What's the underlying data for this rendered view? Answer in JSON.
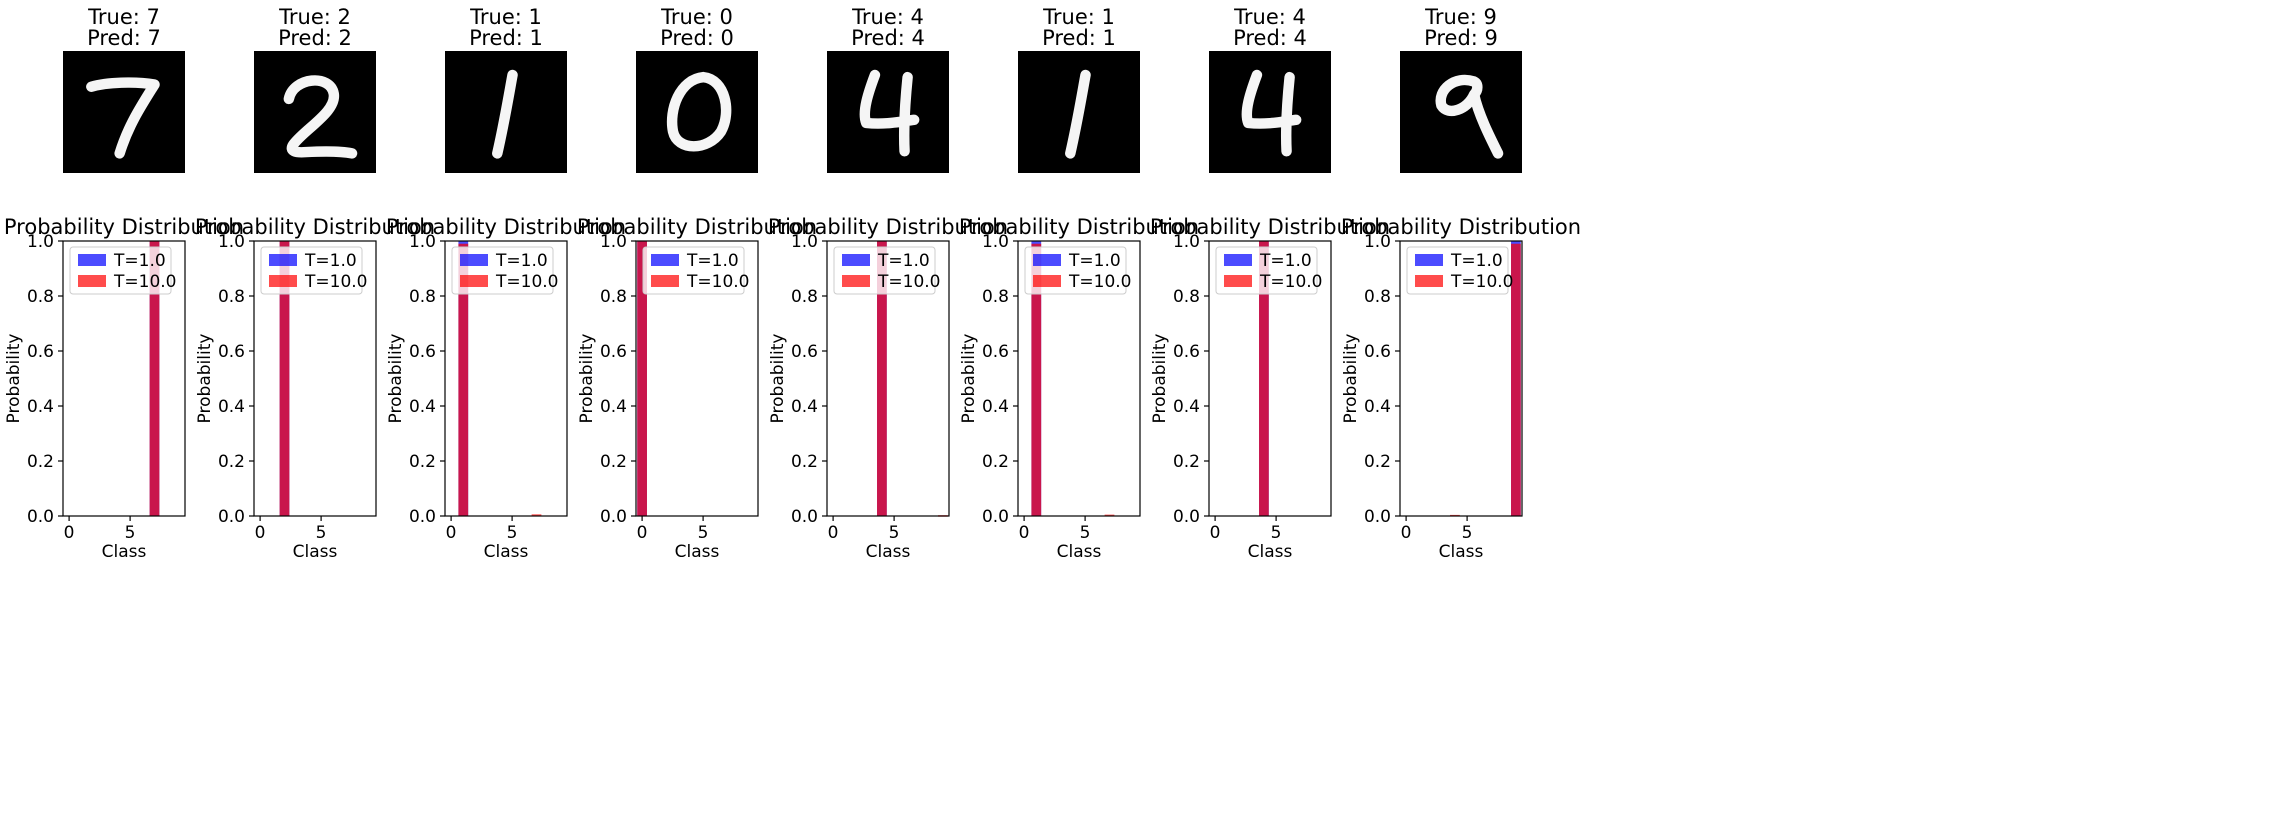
{
  "chart_data": [
    {
      "type": "image",
      "title_true": "True: 7",
      "title_pred": "Pred: 7",
      "digit": "7"
    },
    {
      "type": "image",
      "title_true": "True: 2",
      "title_pred": "Pred: 2",
      "digit": "2"
    },
    {
      "type": "image",
      "title_true": "True: 1",
      "title_pred": "Pred: 1",
      "digit": "1"
    },
    {
      "type": "image",
      "title_true": "True: 0",
      "title_pred": "Pred: 0",
      "digit": "0"
    },
    {
      "type": "image",
      "title_true": "True: 4",
      "title_pred": "Pred: 4",
      "digit": "4"
    },
    {
      "type": "image",
      "title_true": "True: 1",
      "title_pred": "Pred: 1",
      "digit": "1"
    },
    {
      "type": "image",
      "title_true": "True: 4",
      "title_pred": "Pred: 4",
      "digit": "4"
    },
    {
      "type": "image",
      "title_true": "True: 9",
      "title_pred": "Pred: 9",
      "digit": "9"
    },
    {
      "type": "bar",
      "title": "Probability Distribution",
      "xlabel": "Class",
      "ylabel": "Probability",
      "xlim": [
        -0.5,
        9.5
      ],
      "ylim": [
        0,
        1
      ],
      "xticks": [
        0,
        5
      ],
      "yticks": [
        0,
        0.2,
        0.4,
        0.6,
        0.8,
        1.0
      ],
      "categories": [
        0,
        1,
        2,
        3,
        4,
        5,
        6,
        7,
        8,
        9
      ],
      "legend_loc": "upper left",
      "series": [
        {
          "name": "T=1.0",
          "color": "#0000ff",
          "values": [
            0,
            0,
            0,
            0,
            0,
            0,
            0,
            1.0,
            0,
            0
          ]
        },
        {
          "name": "T=10.0",
          "color": "#ff0000",
          "values": [
            0,
            0,
            0,
            0,
            0,
            0,
            0,
            1.0,
            0,
            0
          ]
        }
      ]
    },
    {
      "type": "bar",
      "title": "Probability Distribution",
      "xlabel": "Class",
      "ylabel": "Probability",
      "xlim": [
        -0.5,
        9.5
      ],
      "ylim": [
        0,
        1
      ],
      "xticks": [
        0,
        5
      ],
      "yticks": [
        0,
        0.2,
        0.4,
        0.6,
        0.8,
        1.0
      ],
      "categories": [
        0,
        1,
        2,
        3,
        4,
        5,
        6,
        7,
        8,
        9
      ],
      "legend_loc": "upper left",
      "series": [
        {
          "name": "T=1.0",
          "color": "#0000ff",
          "values": [
            0,
            0,
            1.0,
            0,
            0,
            0,
            0,
            0,
            0,
            0
          ]
        },
        {
          "name": "T=10.0",
          "color": "#ff0000",
          "values": [
            0,
            0,
            1.0,
            0,
            0,
            0,
            0,
            0,
            0,
            0
          ]
        }
      ]
    },
    {
      "type": "bar",
      "title": "Probability Distribution",
      "xlabel": "Class",
      "ylabel": "Probability",
      "xlim": [
        -0.5,
        9.5
      ],
      "ylim": [
        0,
        1
      ],
      "xticks": [
        0,
        5
      ],
      "yticks": [
        0,
        0.2,
        0.4,
        0.6,
        0.8,
        1.0
      ],
      "categories": [
        0,
        1,
        2,
        3,
        4,
        5,
        6,
        7,
        8,
        9
      ],
      "legend_loc": "upper left",
      "series": [
        {
          "name": "T=1.0",
          "color": "#0000ff",
          "values": [
            0,
            1.0,
            0,
            0,
            0,
            0,
            0,
            0,
            0,
            0
          ]
        },
        {
          "name": "T=10.0",
          "color": "#ff0000",
          "values": [
            0,
            0.99,
            0,
            0,
            0,
            0,
            0,
            0.006,
            0,
            0
          ]
        }
      ]
    },
    {
      "type": "bar",
      "title": "Probability Distribution",
      "xlabel": "Class",
      "ylabel": "Probability",
      "xlim": [
        -0.5,
        9.5
      ],
      "ylim": [
        0,
        1
      ],
      "xticks": [
        0,
        5
      ],
      "yticks": [
        0,
        0.2,
        0.4,
        0.6,
        0.8,
        1.0
      ],
      "categories": [
        0,
        1,
        2,
        3,
        4,
        5,
        6,
        7,
        8,
        9
      ],
      "legend_loc": "upper left",
      "series": [
        {
          "name": "T=1.0",
          "color": "#0000ff",
          "values": [
            1.0,
            0,
            0,
            0,
            0,
            0,
            0,
            0,
            0,
            0
          ]
        },
        {
          "name": "T=10.0",
          "color": "#ff0000",
          "values": [
            1.0,
            0,
            0,
            0,
            0,
            0,
            0,
            0,
            0,
            0
          ]
        }
      ]
    },
    {
      "type": "bar",
      "title": "Probability Distribution",
      "xlabel": "Class",
      "ylabel": "Probability",
      "xlim": [
        -0.5,
        9.5
      ],
      "ylim": [
        0,
        1
      ],
      "xticks": [
        0,
        5
      ],
      "yticks": [
        0,
        0.2,
        0.4,
        0.6,
        0.8,
        1.0
      ],
      "categories": [
        0,
        1,
        2,
        3,
        4,
        5,
        6,
        7,
        8,
        9
      ],
      "legend_loc": "upper left",
      "series": [
        {
          "name": "T=1.0",
          "color": "#0000ff",
          "values": [
            0,
            0,
            0,
            0,
            1.0,
            0,
            0,
            0,
            0,
            0
          ]
        },
        {
          "name": "T=10.0",
          "color": "#ff0000",
          "values": [
            0,
            0,
            0,
            0,
            1.0,
            0,
            0,
            0,
            0,
            0.003
          ]
        }
      ]
    },
    {
      "type": "bar",
      "title": "Probability Distribution",
      "xlabel": "Class",
      "ylabel": "Probability",
      "xlim": [
        -0.5,
        9.5
      ],
      "ylim": [
        0,
        1
      ],
      "xticks": [
        0,
        5
      ],
      "yticks": [
        0,
        0.2,
        0.4,
        0.6,
        0.8,
        1.0
      ],
      "categories": [
        0,
        1,
        2,
        3,
        4,
        5,
        6,
        7,
        8,
        9
      ],
      "legend_loc": "upper left",
      "series": [
        {
          "name": "T=1.0",
          "color": "#0000ff",
          "values": [
            0,
            1.0,
            0,
            0,
            0,
            0,
            0,
            0,
            0,
            0
          ]
        },
        {
          "name": "T=10.0",
          "color": "#ff0000",
          "values": [
            0,
            0.99,
            0,
            0,
            0,
            0,
            0,
            0.005,
            0,
            0
          ]
        }
      ]
    },
    {
      "type": "bar",
      "title": "Probability Distribution",
      "xlabel": "Class",
      "ylabel": "Probability",
      "xlim": [
        -0.5,
        9.5
      ],
      "ylim": [
        0,
        1
      ],
      "xticks": [
        0,
        5
      ],
      "yticks": [
        0,
        0.2,
        0.4,
        0.6,
        0.8,
        1.0
      ],
      "categories": [
        0,
        1,
        2,
        3,
        4,
        5,
        6,
        7,
        8,
        9
      ],
      "legend_loc": "upper left",
      "series": [
        {
          "name": "T=1.0",
          "color": "#0000ff",
          "values": [
            0,
            0,
            0,
            0,
            1.0,
            0,
            0,
            0,
            0,
            0
          ]
        },
        {
          "name": "T=10.0",
          "color": "#ff0000",
          "values": [
            0,
            0,
            0,
            0,
            1.0,
            0,
            0,
            0,
            0,
            0
          ]
        }
      ]
    },
    {
      "type": "bar",
      "title": "Probability Distribution",
      "xlabel": "Class",
      "ylabel": "Probability",
      "xlim": [
        -0.5,
        9.5
      ],
      "ylim": [
        0,
        1
      ],
      "xticks": [
        0,
        5
      ],
      "yticks": [
        0,
        0.2,
        0.4,
        0.6,
        0.8,
        1.0
      ],
      "categories": [
        0,
        1,
        2,
        3,
        4,
        5,
        6,
        7,
        8,
        9
      ],
      "legend_loc": "upper left",
      "series": [
        {
          "name": "T=1.0",
          "color": "#0000ff",
          "values": [
            0,
            0,
            0,
            0,
            0,
            0,
            0,
            0,
            0,
            1.0
          ]
        },
        {
          "name": "T=10.0",
          "color": "#ff0000",
          "values": [
            0,
            0,
            0,
            0,
            0.004,
            0,
            0,
            0,
            0,
            0.99
          ]
        }
      ]
    }
  ]
}
